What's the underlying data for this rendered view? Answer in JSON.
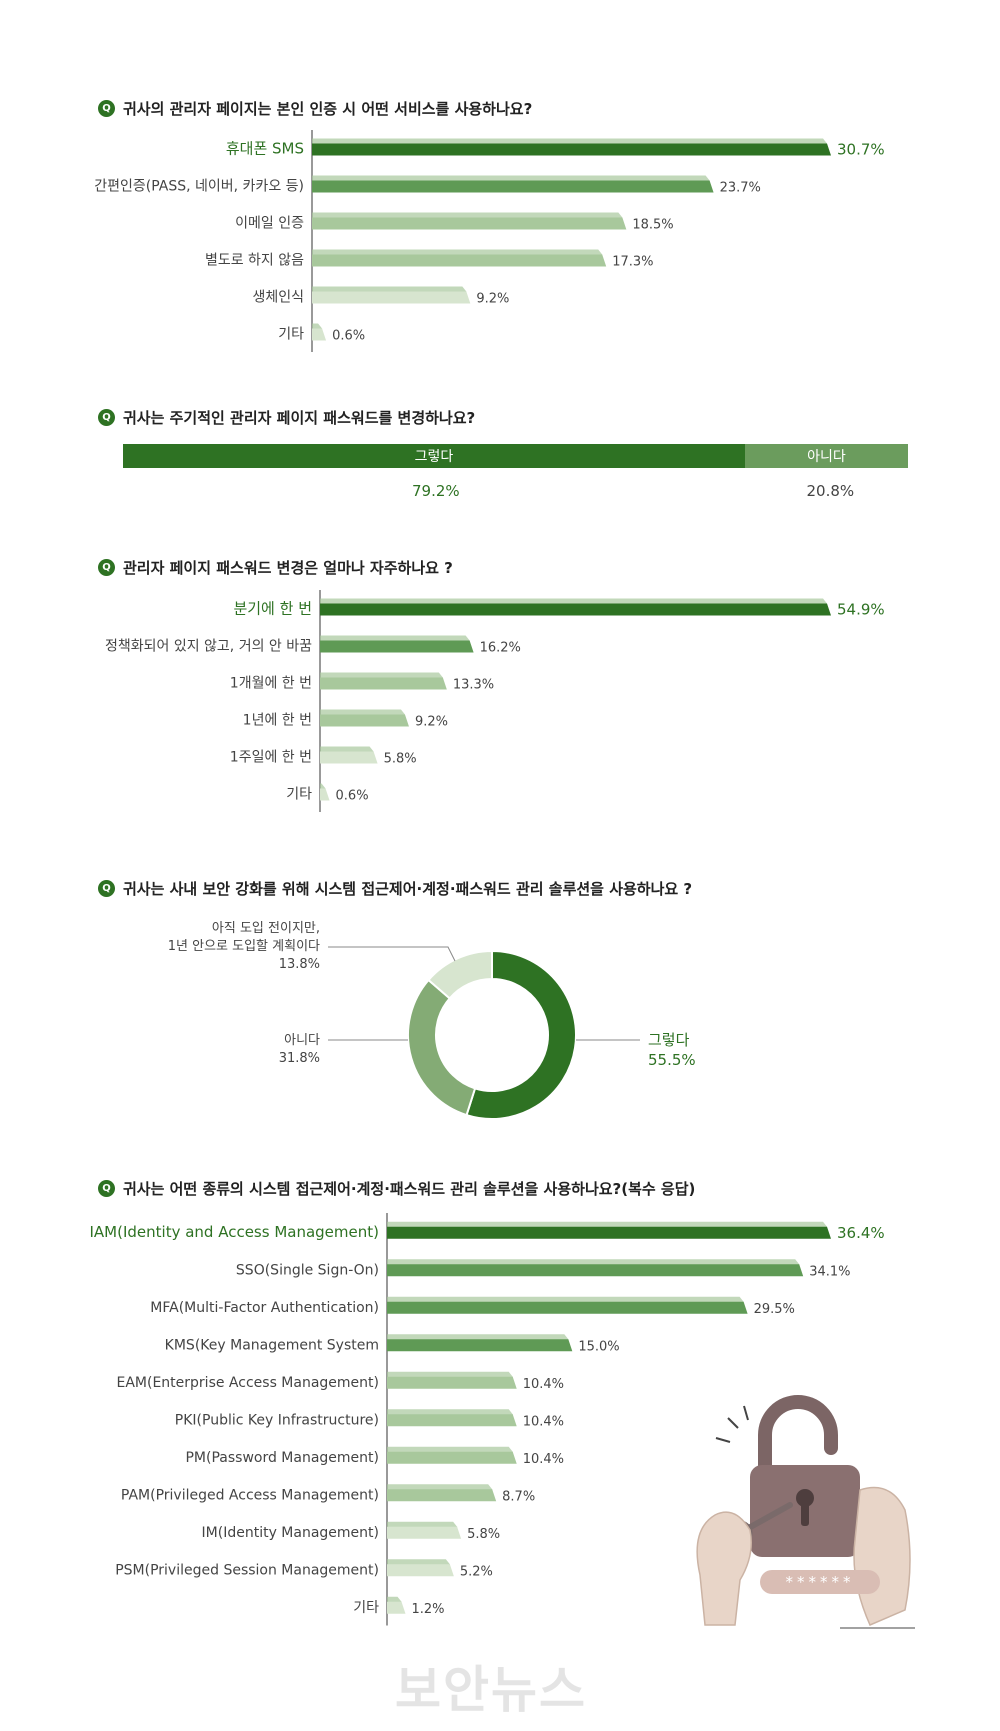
{
  "q1": {
    "badge": "Q",
    "title": "귀사의 관리자 페이지는 본인 인증 시 어떤 서비스를 사용하나요?",
    "chart_data": {
      "type": "bar",
      "categories": [
        "휴대폰 SMS",
        "간편인증(PASS, 네이버, 카카오 등)",
        "이메일 인증",
        "별도로 하지 않음",
        "생체인식",
        "기타"
      ],
      "values": [
        30.7,
        23.7,
        18.5,
        17.3,
        9.2,
        0.6
      ],
      "labels": [
        "30.7%",
        "23.7%",
        "18.5%",
        "17.3%",
        "9.2%",
        "0.6%"
      ]
    }
  },
  "q2": {
    "badge": "Q",
    "title": "귀사는 주기적인 관리자 페이지 패스워드를 변경하나요?",
    "chart_data": {
      "type": "bar",
      "categories": [
        "그렇다",
        "아니다"
      ],
      "values": [
        79.2,
        20.8
      ],
      "labels": [
        "79.2%",
        "20.8%"
      ]
    }
  },
  "q3": {
    "badge": "Q",
    "title": "관리자 페이지 패스워드 변경은 얼마나 자주하나요 ?",
    "chart_data": {
      "type": "bar",
      "categories": [
        "분기에 한 번",
        "정책화되어 있지 않고, 거의 안 바꿈",
        "1개월에 한 번",
        "1년에 한 번",
        "1주일에 한 번",
        "기타"
      ],
      "values": [
        54.9,
        16.2,
        13.3,
        9.2,
        5.8,
        0.6
      ],
      "labels": [
        "54.9%",
        "16.2%",
        "13.3%",
        "9.2%",
        "5.8%",
        "0.6%"
      ]
    }
  },
  "q4": {
    "badge": "Q",
    "title": "귀사는 사내 보안 강화를 위해 시스템 접근제어·계정·패스워드 관리 솔루션을 사용하나요 ?",
    "chart_data": {
      "type": "pie",
      "categories": [
        "그렇다",
        "아니다",
        "아직 도입 전이지만, 1년 안으로 도입할 계획이다"
      ],
      "values": [
        55.5,
        31.8,
        13.8
      ],
      "labels": [
        "55.5%",
        "31.8%",
        "13.8%"
      ],
      "label_lines": {
        "yes": "그렇다",
        "no": "아니다",
        "plan_1": "아직 도입 전이지만,",
        "plan_2": "1년 안으로 도입할 계획이다"
      }
    }
  },
  "q5": {
    "badge": "Q",
    "title": "귀사는 어떤 종류의 시스템 접근제어·계정·패스워드 관리 솔루션을 사용하나요?(복수 응답)",
    "chart_data": {
      "type": "bar",
      "categories": [
        "IAM(Identity and Access Management)",
        "SSO(Single Sign-On)",
        "MFA(Multi-Factor Authentication)",
        "KMS(Key Management System",
        "EAM(Enterprise Access Management)",
        "PKI(Public Key Infrastructure)",
        "PM(Password Management)",
        "PAM(Privileged Access Management)",
        "IM(Identity Management)",
        "PSM(Privileged Session Management)",
        "기타"
      ],
      "values": [
        36.4,
        34.1,
        29.5,
        15.0,
        10.4,
        10.4,
        10.4,
        8.7,
        5.8,
        5.2,
        1.2
      ],
      "labels": [
        "36.4%",
        "34.1%",
        "29.5%",
        "15.0%",
        "10.4%",
        "10.4%",
        "10.4%",
        "8.7%",
        "5.8%",
        "5.2%",
        "1.2%"
      ]
    }
  },
  "illustration": {
    "password_mask": "******"
  },
  "watermark": "보안뉴스",
  "colors": {
    "dark": "#2e7223",
    "mid": "#5f9a55",
    "light": "#a8c89c",
    "pale": "#d7e5cf"
  }
}
